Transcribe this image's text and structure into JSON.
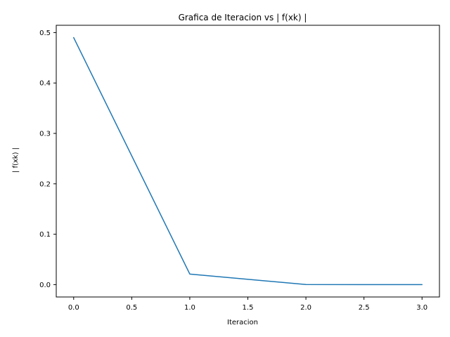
{
  "chart_data": {
    "type": "line",
    "title": "Grafica de Iteracion vs | f(xk) |",
    "xlabel": "Iteracion",
    "ylabel": "| f(xk) |",
    "x": [
      0,
      1,
      2,
      3
    ],
    "series": [
      {
        "values": [
          0.49,
          0.021,
          0.0002,
          0.0
        ]
      }
    ],
    "xlim": [
      -0.15,
      3.15
    ],
    "ylim": [
      -0.0245,
      0.5145
    ],
    "xticks": [
      0.0,
      0.5,
      1.0,
      1.5,
      2.0,
      2.5,
      3.0
    ],
    "xtick_labels": [
      "0.0",
      "0.5",
      "1.0",
      "1.5",
      "2.0",
      "2.5",
      "3.0"
    ],
    "yticks": [
      0.0,
      0.1,
      0.2,
      0.3,
      0.4,
      0.5
    ],
    "ytick_labels": [
      "0.0",
      "0.1",
      "0.2",
      "0.3",
      "0.4",
      "0.5"
    ],
    "grid": false,
    "legend": "none",
    "colors": {
      "line": "#1f77b4",
      "axes": "#000000",
      "background": "#ffffff"
    }
  }
}
